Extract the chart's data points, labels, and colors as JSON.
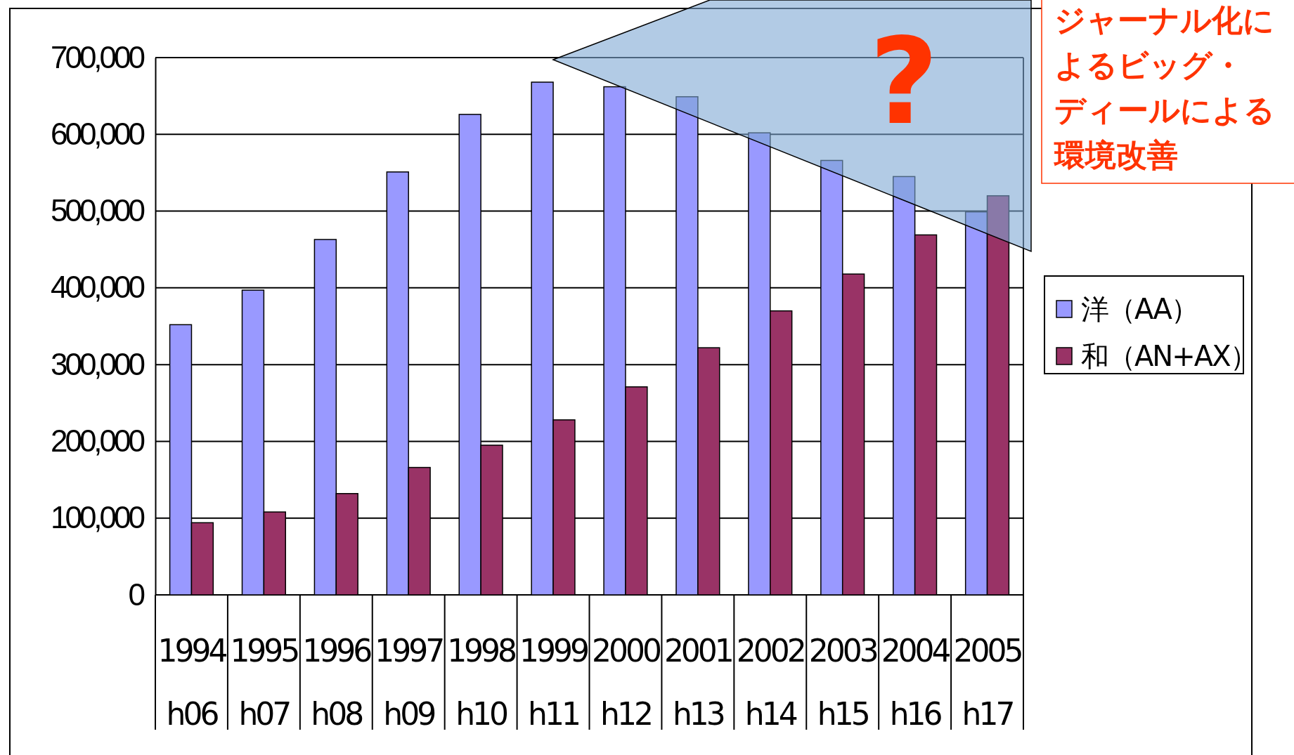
{
  "chart_data": {
    "type": "bar",
    "categories": [
      "1994\nh06",
      "1995\nh07",
      "1996\nh08",
      "1997\nh09",
      "1998\nh10",
      "1999\nh11",
      "2000\nh12",
      "2001\nh13",
      "2002\nh14",
      "2003\nh15",
      "2004\nh16",
      "2005\nh17"
    ],
    "series": [
      {
        "name": "洋（AA）",
        "color": "#9999ff",
        "values": [
          352000,
          397000,
          463000,
          551000,
          626000,
          668000,
          662000,
          649000,
          602000,
          566000,
          545000,
          499000
        ]
      },
      {
        "name": "和（AN+AX）",
        "color": "#993366",
        "values": [
          94000,
          108000,
          132000,
          166000,
          195000,
          228000,
          271000,
          322000,
          370000,
          418000,
          469000,
          520000
        ]
      }
    ],
    "ylim": [
      0,
      700000
    ],
    "yticks": [
      0,
      {
        "value": 100000,
        "label": "100,000"
      },
      {
        "value": 200000,
        "label": "200,000"
      },
      {
        "value": 300000,
        "label": "300,000"
      },
      {
        "value": 400000,
        "label": "400,000"
      },
      {
        "value": 500000,
        "label": "500,000"
      },
      {
        "value": 600000,
        "label": "600,000"
      },
      {
        "value": 700000,
        "label": "700,000"
      }
    ],
    "grid": "y",
    "legend": "right",
    "annotations": [
      "?",
      "ジャーナル化によるビッグ・ディールによる環境改善"
    ]
  }
}
